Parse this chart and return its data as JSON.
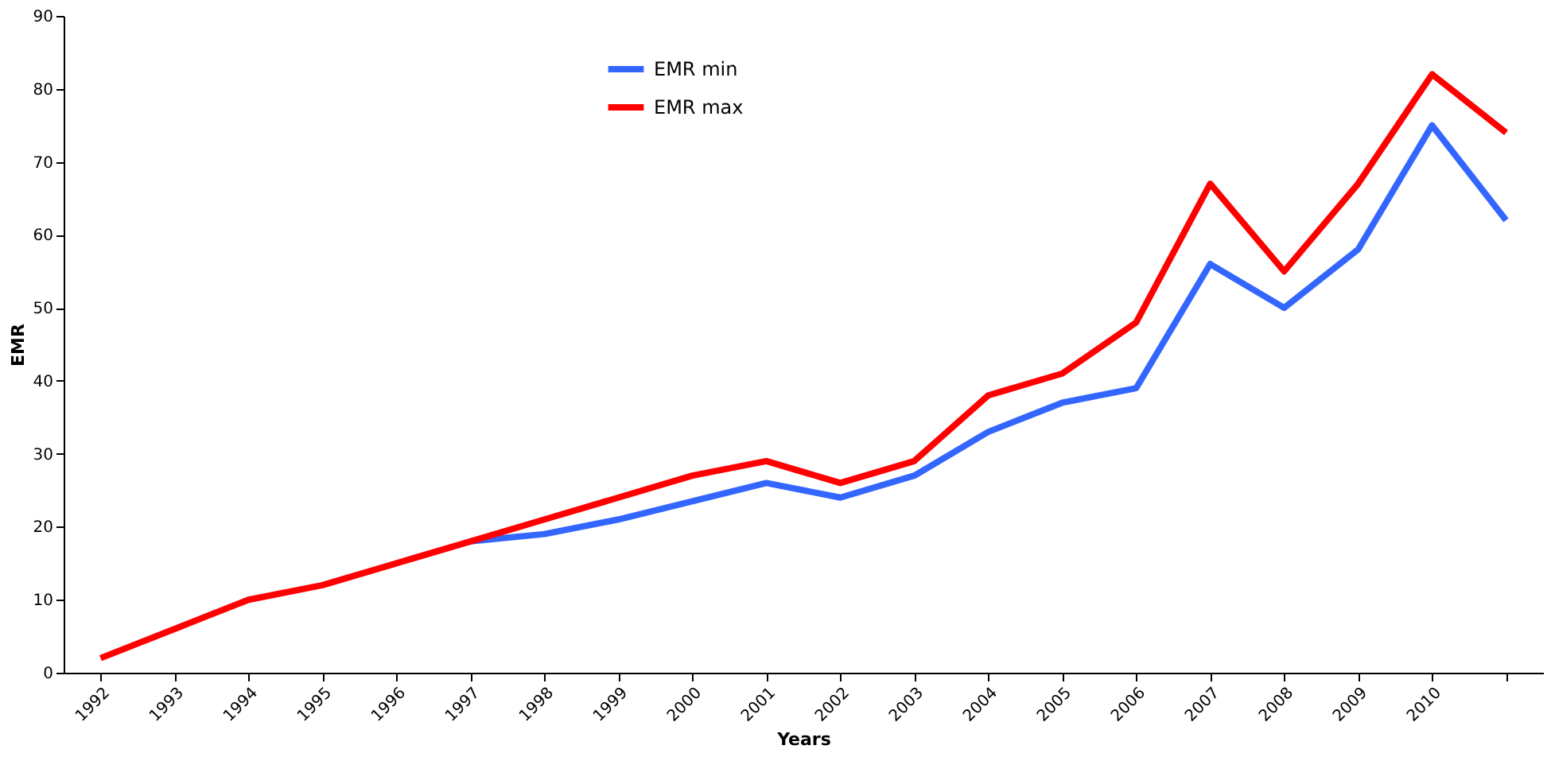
{
  "chart_data": {
    "type": "line",
    "xlabel": "Years",
    "ylabel": "EMR",
    "categories": [
      "1992",
      "1993",
      "1994",
      "1995",
      "1996",
      "1997",
      "1998",
      "1999",
      "2000",
      "2001",
      "2002",
      "2003",
      "2004",
      "2005",
      "2006",
      "2007",
      "2008",
      "2009",
      "2010",
      null
    ],
    "series": [
      {
        "name": "EMR min",
        "color": "#3366ff",
        "values": [
          null,
          null,
          null,
          null,
          null,
          18,
          19,
          21,
          23.5,
          26,
          24,
          27,
          33,
          37,
          39,
          56,
          50,
          58,
          75,
          62
        ]
      },
      {
        "name": "EMR max",
        "color": "#ff0000",
        "values": [
          2,
          6,
          10,
          12,
          15,
          18,
          21,
          24,
          27,
          29,
          26,
          29,
          38,
          41,
          48,
          67,
          55,
          67,
          82,
          74
        ]
      }
    ],
    "ylim": [
      0,
      90
    ],
    "yticks": [
      0,
      10,
      20,
      30,
      40,
      50,
      60,
      70,
      80,
      90
    ],
    "grid": false,
    "legend": "top",
    "marker": "none",
    "line_style": "solid"
  }
}
